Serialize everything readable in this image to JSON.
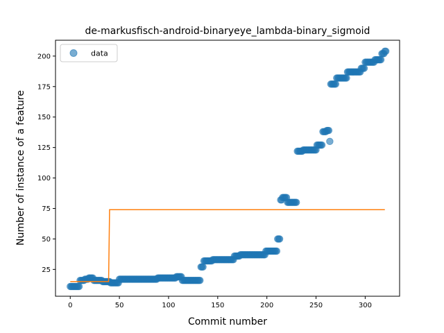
{
  "chart_data": {
    "type": "scatter",
    "title": "de-markusfisch-android-binaryeye_lambda-binary_sigmoid",
    "xlabel": "Commit number",
    "ylabel": "Number of instance of a feature",
    "xlim": [
      -15,
      335
    ],
    "ylim": [
      3,
      213
    ],
    "xticks": [
      0,
      50,
      100,
      150,
      200,
      250,
      300
    ],
    "yticks": [
      25,
      50,
      75,
      100,
      125,
      150,
      175,
      200
    ],
    "legend": {
      "position": "upper-left",
      "entries": [
        "data"
      ]
    },
    "colors": {
      "points": "#1f77b4",
      "fit": "#ff7f0e"
    },
    "series": [
      {
        "name": "data",
        "kind": "scatter",
        "segments": [
          {
            "from": 0,
            "to": 9,
            "y": 11
          },
          {
            "from": 10,
            "to": 14,
            "y": 16
          },
          {
            "from": 15,
            "to": 18,
            "y": 17
          },
          {
            "from": 19,
            "to": 23,
            "y": 18
          },
          {
            "from": 24,
            "to": 32,
            "y": 16
          },
          {
            "from": 33,
            "to": 40,
            "y": 15
          },
          {
            "from": 41,
            "to": 49,
            "y": 14
          },
          {
            "from": 50,
            "to": 88,
            "y": 17
          },
          {
            "from": 89,
            "to": 107,
            "y": 18
          },
          {
            "from": 108,
            "to": 113,
            "y": 19
          },
          {
            "from": 114,
            "to": 132,
            "y": 16
          },
          {
            "from": 133,
            "to": 135,
            "y": 27
          },
          {
            "from": 136,
            "to": 144,
            "y": 32
          },
          {
            "from": 145,
            "to": 166,
            "y": 33
          },
          {
            "from": 167,
            "to": 172,
            "y": 36
          },
          {
            "from": 173,
            "to": 198,
            "y": 37
          },
          {
            "from": 199,
            "to": 210,
            "y": 40
          },
          {
            "from": 211,
            "to": 213,
            "y": 50
          },
          {
            "from": 214,
            "to": 215,
            "y": 82
          },
          {
            "from": 216,
            "to": 220,
            "y": 84
          },
          {
            "from": 221,
            "to": 230,
            "y": 80
          },
          {
            "from": 231,
            "to": 236,
            "y": 122
          },
          {
            "from": 237,
            "to": 250,
            "y": 123
          },
          {
            "from": 251,
            "to": 256,
            "y": 127
          },
          {
            "from": 257,
            "to": 260,
            "y": 138
          },
          {
            "from": 261,
            "to": 263,
            "y": 139
          },
          {
            "from": 264,
            "to": 264,
            "y": 130
          },
          {
            "from": 265,
            "to": 270,
            "y": 177
          },
          {
            "from": 271,
            "to": 281,
            "y": 182
          },
          {
            "from": 282,
            "to": 295,
            "y": 187
          },
          {
            "from": 296,
            "to": 299,
            "y": 190
          },
          {
            "from": 300,
            "to": 309,
            "y": 195
          },
          {
            "from": 310,
            "to": 316,
            "y": 197
          },
          {
            "from": 317,
            "to": 319,
            "y": 202
          },
          {
            "from": 320,
            "to": 321,
            "y": 204
          }
        ]
      },
      {
        "name": "fit",
        "kind": "line",
        "points": [
          [
            0,
            15
          ],
          [
            39,
            15
          ],
          [
            40,
            74
          ],
          [
            320,
            74
          ]
        ]
      }
    ]
  }
}
